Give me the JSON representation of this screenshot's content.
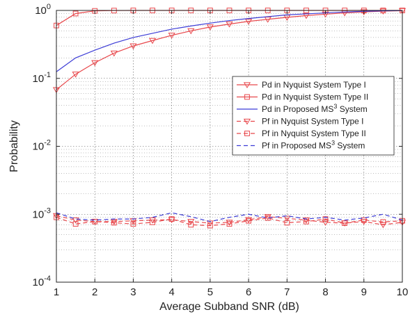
{
  "chart_data": {
    "type": "line",
    "title": "",
    "xlabel": "Average Subband SNR (dB)",
    "ylabel": "Probability",
    "xlim": [
      1,
      10
    ],
    "ylim": [
      0.0001,
      1
    ],
    "yscale": "log",
    "grid": true,
    "legend_position": "right-middle",
    "x": [
      1,
      1.5,
      2,
      2.5,
      3,
      3.5,
      4,
      4.5,
      5,
      5.5,
      6,
      6.5,
      7,
      7.5,
      8,
      8.5,
      9,
      9.5,
      10
    ],
    "xticks": [
      "1",
      "2",
      "3",
      "4",
      "5",
      "6",
      "7",
      "8",
      "9",
      "10"
    ],
    "yticks": [
      {
        "base": "10",
        "exp": "0"
      },
      {
        "base": "10",
        "exp": "-1"
      },
      {
        "base": "10",
        "exp": "-2"
      },
      {
        "base": "10",
        "exp": "-3"
      },
      {
        "base": "10",
        "exp": "-4"
      }
    ],
    "series": [
      {
        "name": "Pd in Nyquist System Type I",
        "legend_text": "Pd in Nyquist System Type I",
        "color": "#e8474b",
        "dash": "solid",
        "marker": "triangle-down",
        "values": [
          0.068,
          0.115,
          0.17,
          0.235,
          0.3,
          0.36,
          0.43,
          0.5,
          0.57,
          0.63,
          0.69,
          0.74,
          0.79,
          0.84,
          0.88,
          0.92,
          0.95,
          0.975,
          0.99
        ]
      },
      {
        "name": "Pd in Nyquist System Type II",
        "legend_text": "Pd in Nyquist System Type II",
        "color": "#e8474b",
        "dash": "solid",
        "marker": "square",
        "values": [
          0.6,
          0.9,
          0.985,
          0.995,
          1,
          1,
          1,
          1,
          1,
          1,
          1,
          1,
          1,
          1,
          1,
          1,
          1,
          1,
          1
        ]
      },
      {
        "name": "Pd in Proposed MS3 System",
        "legend_text": "Pd in Proposed MS",
        "legend_sup": "3",
        "legend_suffix": " System",
        "color": "#3b3bd6",
        "dash": "solid",
        "marker": "none",
        "values": [
          0.125,
          0.2,
          0.26,
          0.33,
          0.4,
          0.46,
          0.53,
          0.59,
          0.65,
          0.71,
          0.76,
          0.81,
          0.86,
          0.89,
          0.92,
          0.95,
          0.97,
          0.985,
          0.995
        ]
      },
      {
        "name": "Pf in Nyquist System Type I",
        "legend_text": "Pf in Nyquist System Type I",
        "color": "#e8474b",
        "dash": "dashed",
        "marker": "triangle-down",
        "values": [
          0.00095,
          0.00082,
          0.00078,
          0.00078,
          0.0008,
          0.00082,
          0.00083,
          0.00078,
          0.00074,
          0.00076,
          0.00083,
          0.00092,
          0.00087,
          0.00082,
          0.00076,
          0.00074,
          0.00078,
          0.0007,
          0.00076
        ]
      },
      {
        "name": "Pf in Nyquist System Type II",
        "legend_text": "Pf in Nyquist System Type II",
        "color": "#e8474b",
        "dash": "dashed",
        "marker": "square",
        "values": [
          0.0009,
          0.00072,
          0.00078,
          0.00075,
          0.00072,
          0.00076,
          0.00085,
          0.0007,
          0.00068,
          0.00072,
          0.0008,
          0.00088,
          0.00075,
          0.00078,
          0.00085,
          0.00074,
          0.00082,
          0.00077,
          0.0008
        ]
      },
      {
        "name": "Pf in Proposed MS3 System",
        "legend_text": "Pf in Proposed MS",
        "legend_sup": "3",
        "legend_suffix": " System",
        "color": "#3b3bd6",
        "dash": "dashed",
        "marker": "none",
        "values": [
          0.00105,
          0.00085,
          0.00082,
          0.00085,
          0.00085,
          0.0009,
          0.00105,
          0.00092,
          0.00078,
          0.0009,
          0.001,
          0.00088,
          0.00095,
          0.00085,
          0.0009,
          0.00082,
          0.00088,
          0.001,
          0.00082
        ]
      }
    ]
  }
}
